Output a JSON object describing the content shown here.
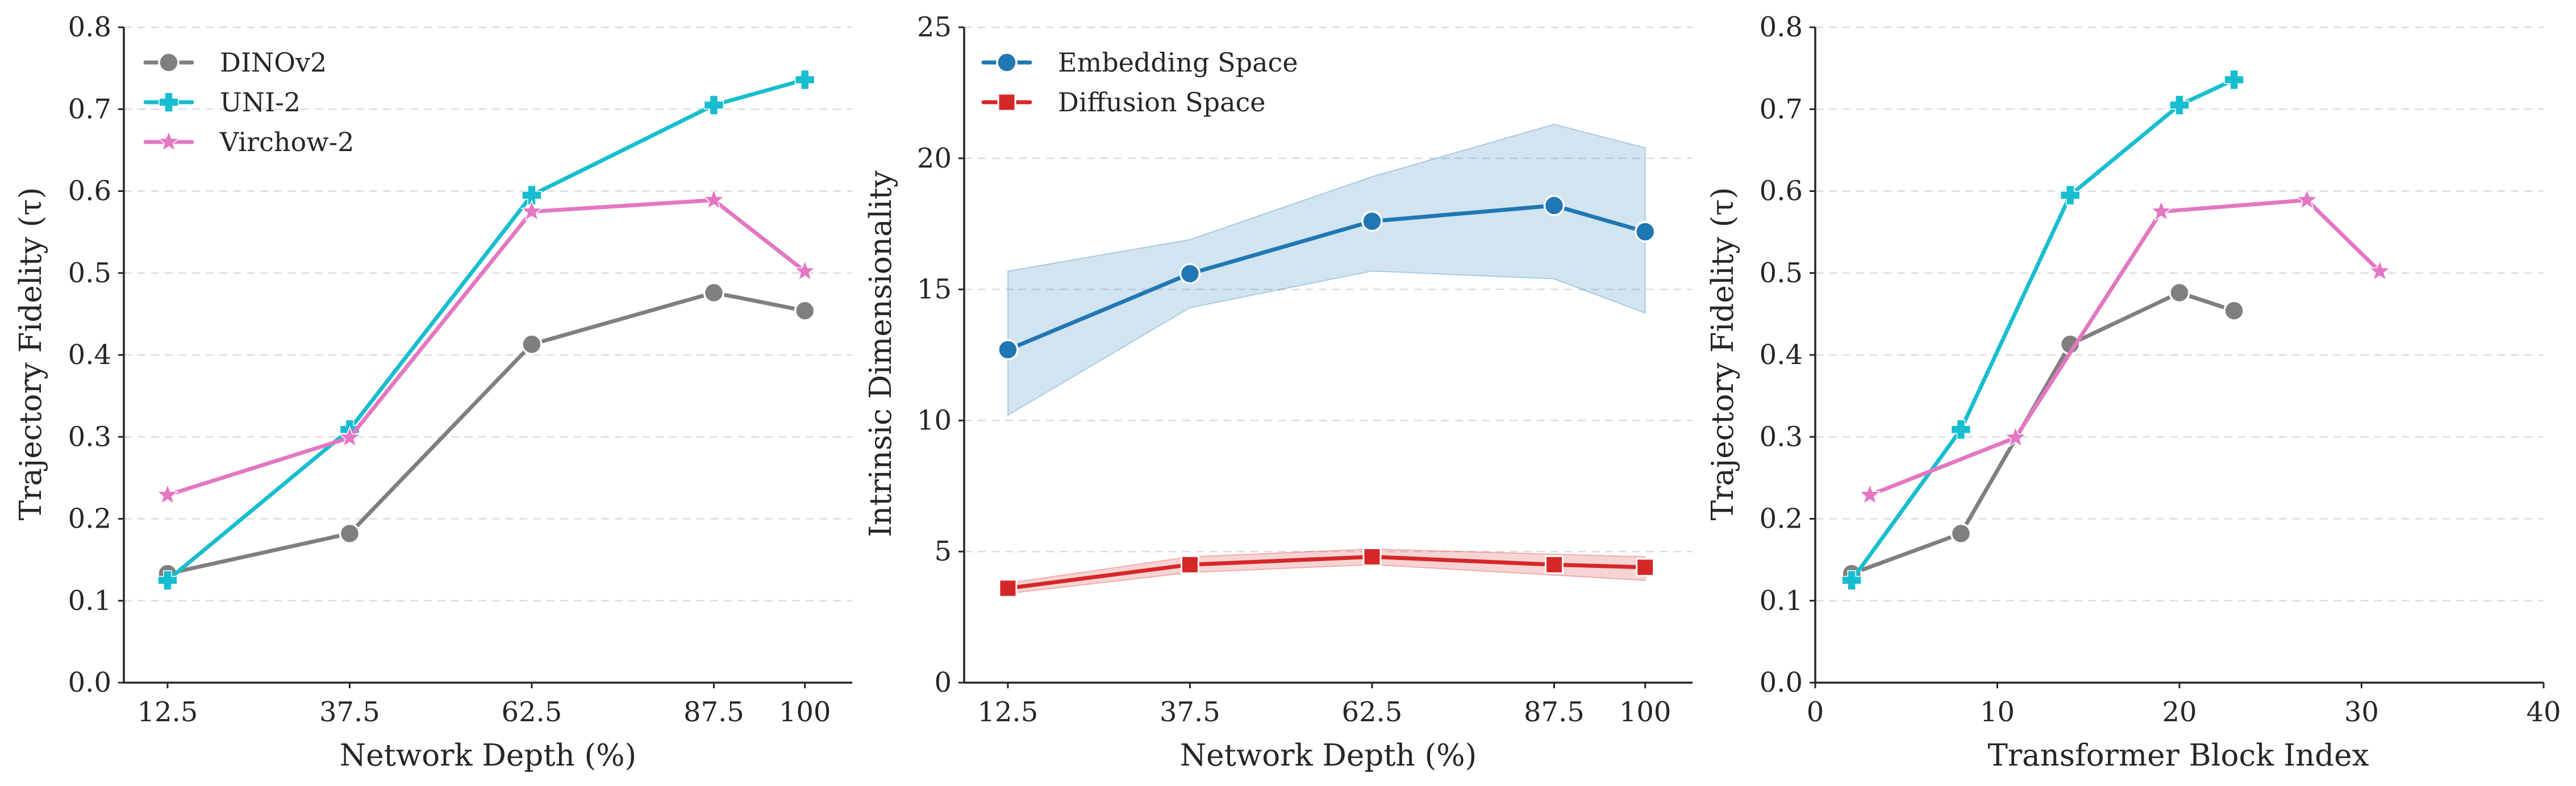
{
  "chart_data": [
    {
      "type": "line",
      "xlabel": "Network Depth (%)",
      "ylabel": "Trajectory Fidelity (τ)",
      "xlim": [
        6.5,
        106.5
      ],
      "ylim": [
        0,
        0.8
      ],
      "xticks": [
        12.5,
        37.5,
        62.5,
        87.5,
        100
      ],
      "xtick_labels": [
        "12.5",
        "37.5",
        "62.5",
        "87.5",
        "100"
      ],
      "yticks": [
        0,
        0.1,
        0.2,
        0.3,
        0.4,
        0.5,
        0.6,
        0.7,
        0.8
      ],
      "ytick_labels": [
        "0.0",
        "0.1",
        "0.2",
        "0.3",
        "0.4",
        "0.5",
        "0.6",
        "0.7",
        "0.8"
      ],
      "grid": "horizontal dashed",
      "legend_position": "top-left",
      "series": [
        {
          "name": "DINOv2",
          "color": "#7f7f7f",
          "marker": "circle",
          "x": [
            12.5,
            37.5,
            62.5,
            87.5,
            100
          ],
          "y": [
            0.133,
            0.182,
            0.413,
            0.476,
            0.454
          ]
        },
        {
          "name": "UNI-2",
          "color": "#17becf",
          "marker": "plus",
          "x": [
            12.5,
            37.5,
            62.5,
            87.5,
            100
          ],
          "y": [
            0.125,
            0.309,
            0.595,
            0.705,
            0.736
          ]
        },
        {
          "name": "Virchow-2",
          "color": "#e377c2",
          "marker": "star",
          "x": [
            12.5,
            37.5,
            62.5,
            87.5,
            100
          ],
          "y": [
            0.229,
            0.299,
            0.575,
            0.589,
            0.502
          ]
        }
      ]
    },
    {
      "type": "line",
      "xlabel": "Network Depth (%)",
      "ylabel": "Intrinsic Dimensionality",
      "xlim": [
        6.5,
        106.5
      ],
      "ylim": [
        0,
        25
      ],
      "xticks": [
        12.5,
        37.5,
        62.5,
        87.5,
        100
      ],
      "xtick_labels": [
        "12.5",
        "37.5",
        "62.5",
        "87.5",
        "100"
      ],
      "yticks": [
        0,
        5,
        10,
        15,
        20,
        25
      ],
      "ytick_labels": [
        "0",
        "5",
        "10",
        "15",
        "20",
        "25"
      ],
      "grid": "horizontal dashed",
      "legend_position": "top-left",
      "series": [
        {
          "name": "Embedding Space",
          "color": "#1f77b4",
          "marker": "circle",
          "x": [
            12.5,
            37.5,
            62.5,
            87.5,
            100
          ],
          "y": [
            12.7,
            15.6,
            17.6,
            18.2,
            17.2
          ],
          "band_low": [
            10.2,
            14.3,
            15.7,
            15.4,
            14.1
          ],
          "band_high": [
            15.7,
            16.9,
            19.3,
            21.3,
            20.4
          ]
        },
        {
          "name": "Diffusion Space",
          "color": "#d62728",
          "marker": "square",
          "x": [
            12.5,
            37.5,
            62.5,
            87.5,
            100
          ],
          "y": [
            3.6,
            4.5,
            4.8,
            4.5,
            4.4
          ],
          "band_low": [
            3.4,
            4.2,
            4.5,
            4.1,
            3.9
          ],
          "band_high": [
            3.8,
            4.8,
            5.1,
            4.9,
            4.8
          ]
        }
      ]
    },
    {
      "type": "line",
      "xlabel": "Transformer Block Index",
      "ylabel": "Trajectory Fidelity (τ)",
      "xlim": [
        0,
        40
      ],
      "ylim": [
        0,
        0.8
      ],
      "xticks": [
        0,
        10,
        20,
        30,
        40
      ],
      "xtick_labels": [
        "0",
        "10",
        "20",
        "30",
        "40"
      ],
      "yticks": [
        0,
        0.1,
        0.2,
        0.3,
        0.4,
        0.5,
        0.6,
        0.7,
        0.8
      ],
      "ytick_labels": [
        "0.0",
        "0.1",
        "0.2",
        "0.3",
        "0.4",
        "0.5",
        "0.6",
        "0.7",
        "0.8"
      ],
      "grid": "horizontal dashed",
      "legend_position": "none",
      "series": [
        {
          "name": "DINOv2",
          "color": "#7f7f7f",
          "marker": "circle",
          "x": [
            2,
            8,
            14,
            20,
            23
          ],
          "y": [
            0.133,
            0.182,
            0.413,
            0.476,
            0.454
          ]
        },
        {
          "name": "UNI-2",
          "color": "#17becf",
          "marker": "plus",
          "x": [
            2,
            8,
            14,
            20,
            23
          ],
          "y": [
            0.125,
            0.309,
            0.595,
            0.705,
            0.736
          ]
        },
        {
          "name": "Virchow-2",
          "color": "#e377c2",
          "marker": "star",
          "x": [
            3,
            11,
            19,
            27,
            31
          ],
          "y": [
            0.229,
            0.299,
            0.575,
            0.589,
            0.502
          ]
        }
      ]
    }
  ]
}
